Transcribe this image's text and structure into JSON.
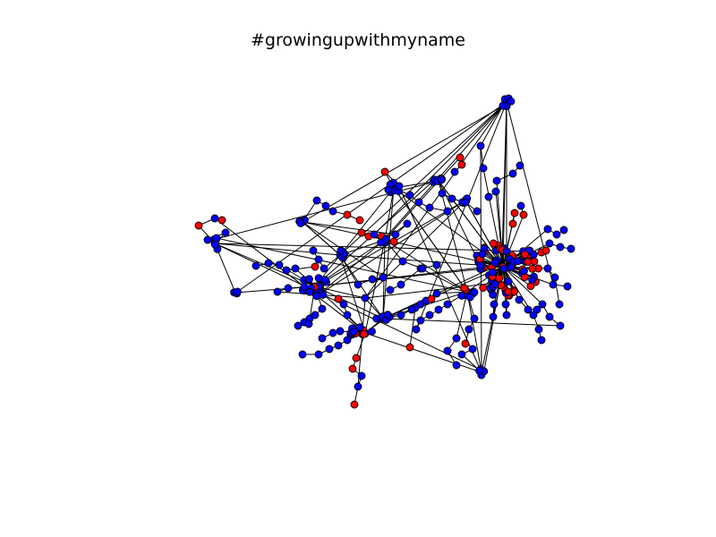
{
  "figure": {
    "title": "#growingupwithmyname"
  },
  "graph": {
    "node_colors": {
      "blue": "#0000ff",
      "red": "#ff0000"
    },
    "edge_color": "#000000",
    "node_outline": "#000000",
    "layout": "force-directed network with several dense clusters and spoke chains"
  }
}
